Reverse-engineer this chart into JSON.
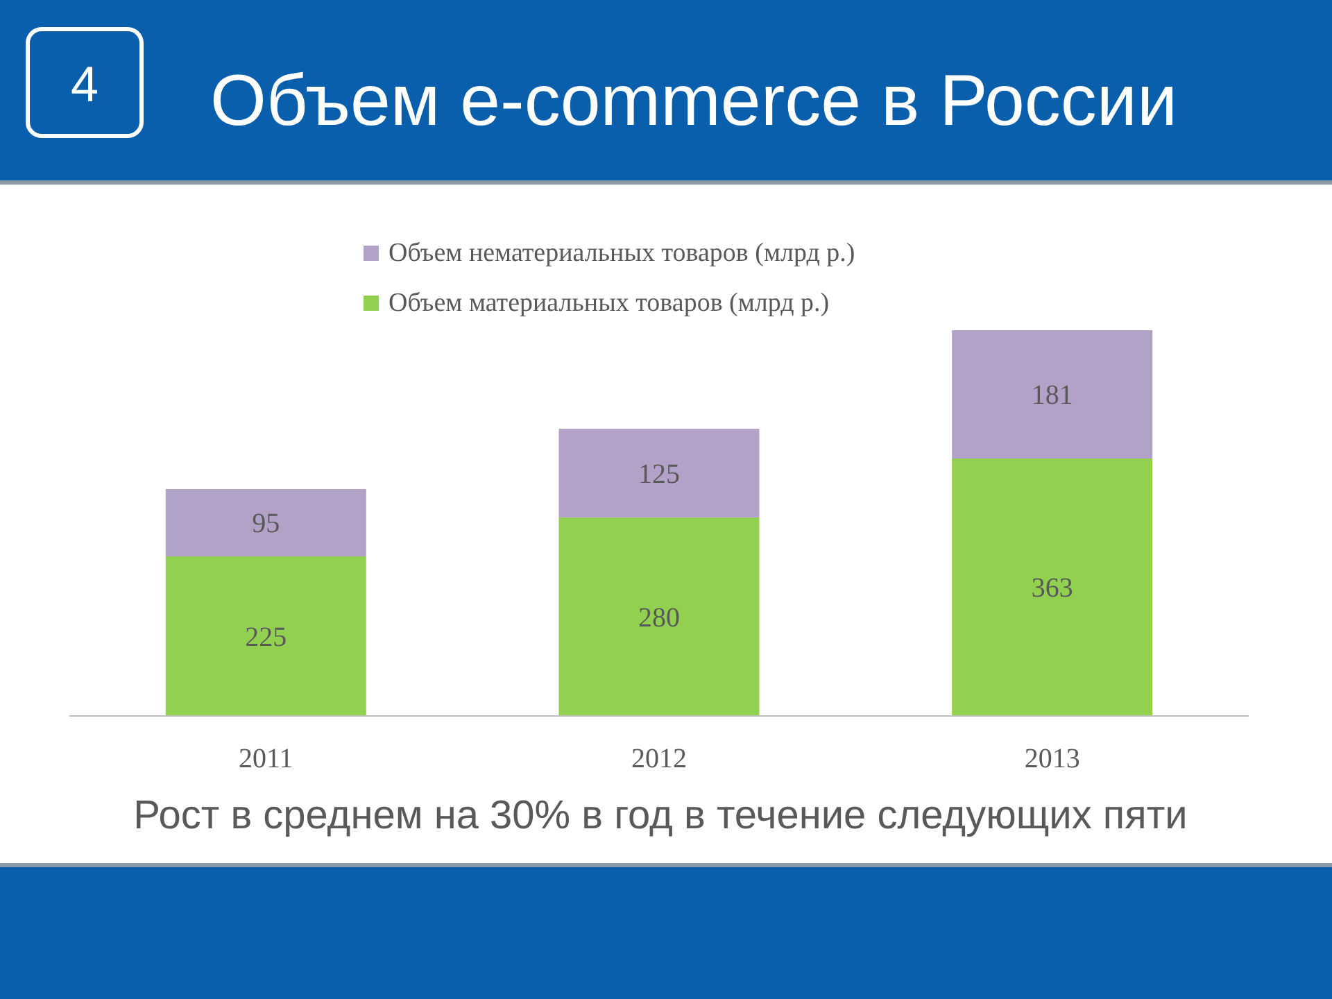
{
  "chart_data": {
    "type": "bar",
    "title": "Объем e-commerce в России",
    "categories": [
      "2011",
      "2012",
      "2013"
    ],
    "stacked": true,
    "data_labels": true,
    "legend": "top",
    "series": [
      {
        "name": "Объем материальных товаров (млрд р.)",
        "color": "#92d050",
        "values": [
          225,
          280,
          363
        ]
      },
      {
        "name": "Объем нематериальных товаров (млрд р.)",
        "color": "#b3a2c7",
        "values": [
          95,
          125,
          181
        ]
      }
    ],
    "annotations": [
      "4",
      "Рост в среднем на 30% в год в течение следующих пяти"
    ]
  }
}
